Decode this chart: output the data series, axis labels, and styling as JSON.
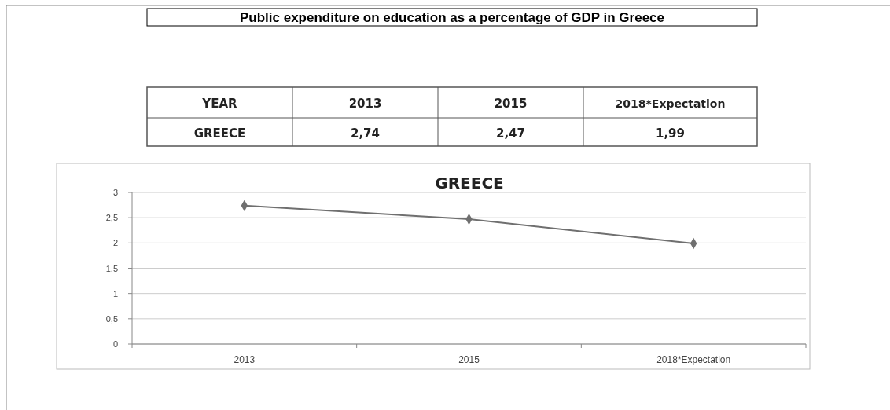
{
  "chart_data": {
    "type": "line",
    "title": "Public expenditure on education as a percentage of GDP in Greece",
    "subtitle": "GREECE",
    "annotations": [
      "YEAR",
      "GREECE",
      "2,74",
      "2,47",
      "1,99"
    ],
    "categories": [
      "2013",
      "2015",
      "2018*Expectation"
    ],
    "series": [
      {
        "color": "#6f6f6f",
        "values": [
          2.74,
          2.47,
          1.99
        ]
      }
    ],
    "ylim": [
      0,
      3
    ],
    "yticks": [
      0,
      {
        "value": 0.5,
        "label": "0,5"
      },
      1,
      {
        "value": 1.5,
        "label": "1,5"
      },
      2,
      {
        "value": 2.5,
        "label": "2,5"
      },
      3
    ],
    "grid": "y",
    "marker": "diamond",
    "line_style": "solid"
  }
}
